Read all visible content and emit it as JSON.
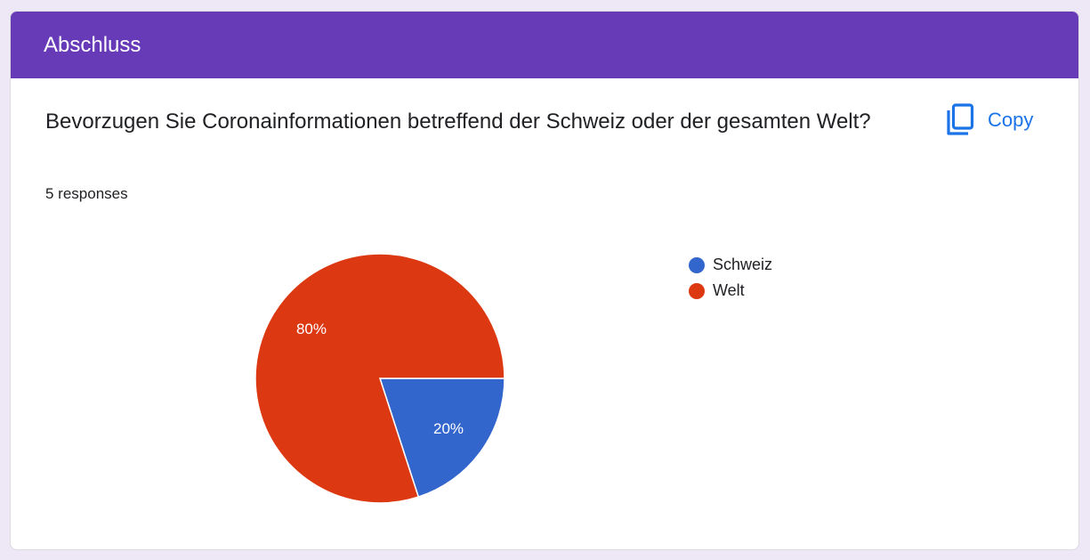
{
  "section": {
    "title": "Abschluss"
  },
  "question": {
    "text": "Bevorzugen Sie Coronainformationen betreffend der Schweiz oder der gesamten Welt?",
    "responses_label": "5 responses"
  },
  "copy": {
    "label": "Copy",
    "icon": "copy-icon"
  },
  "colors": {
    "header": "#673ab7",
    "accent": "#1a73e8"
  },
  "chart_data": {
    "type": "pie",
    "categories": [
      "Schweiz",
      "Welt"
    ],
    "values": [
      20,
      80
    ],
    "labels": [
      "20%",
      "80%"
    ],
    "colors": [
      "#3366cc",
      "#dc3912"
    ],
    "legend_position": "right"
  }
}
